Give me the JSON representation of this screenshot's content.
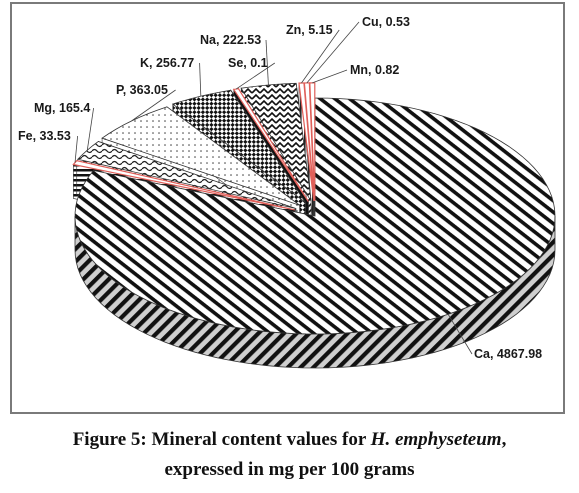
{
  "chart_data": {
    "type": "pie",
    "title": "",
    "slices": [
      {
        "label": "Ca",
        "value": 4867.98,
        "display": "Ca, 4867.98",
        "pattern": "diag"
      },
      {
        "label": "Fe",
        "value": 33.53,
        "display": "Fe, 33.53",
        "pattern": "hstripe"
      },
      {
        "label": "Mg",
        "value": 165.4,
        "display": "Mg, 165.4",
        "pattern": "wave"
      },
      {
        "label": "P",
        "value": 363.05,
        "display": "P, 363.05",
        "pattern": "dots"
      },
      {
        "label": "K",
        "value": 256.77,
        "display": "K, 256.77",
        "pattern": "checker"
      },
      {
        "label": "Se",
        "value": 0.1,
        "display": "Se, 0.1",
        "pattern": "solid"
      },
      {
        "label": "Na",
        "value": 222.53,
        "display": "Na, 222.53",
        "pattern": "zigzag"
      },
      {
        "label": "Zn",
        "value": 5.15,
        "display": "Zn, 5.15",
        "pattern": "vstripe"
      },
      {
        "label": "Cu",
        "value": 0.53,
        "display": "Cu, 0.53",
        "pattern": "solid"
      },
      {
        "label": "Mn",
        "value": 0.82,
        "display": "Mn, 0.82",
        "pattern": "solid"
      }
    ],
    "accent_color": "#e0605a",
    "legend": "none"
  },
  "caption": {
    "prefix": "Figure 5: Mineral content values for ",
    "species": "H. emphyseteum",
    "suffix": ",",
    "line2": "expressed in mg per 100 grams"
  }
}
